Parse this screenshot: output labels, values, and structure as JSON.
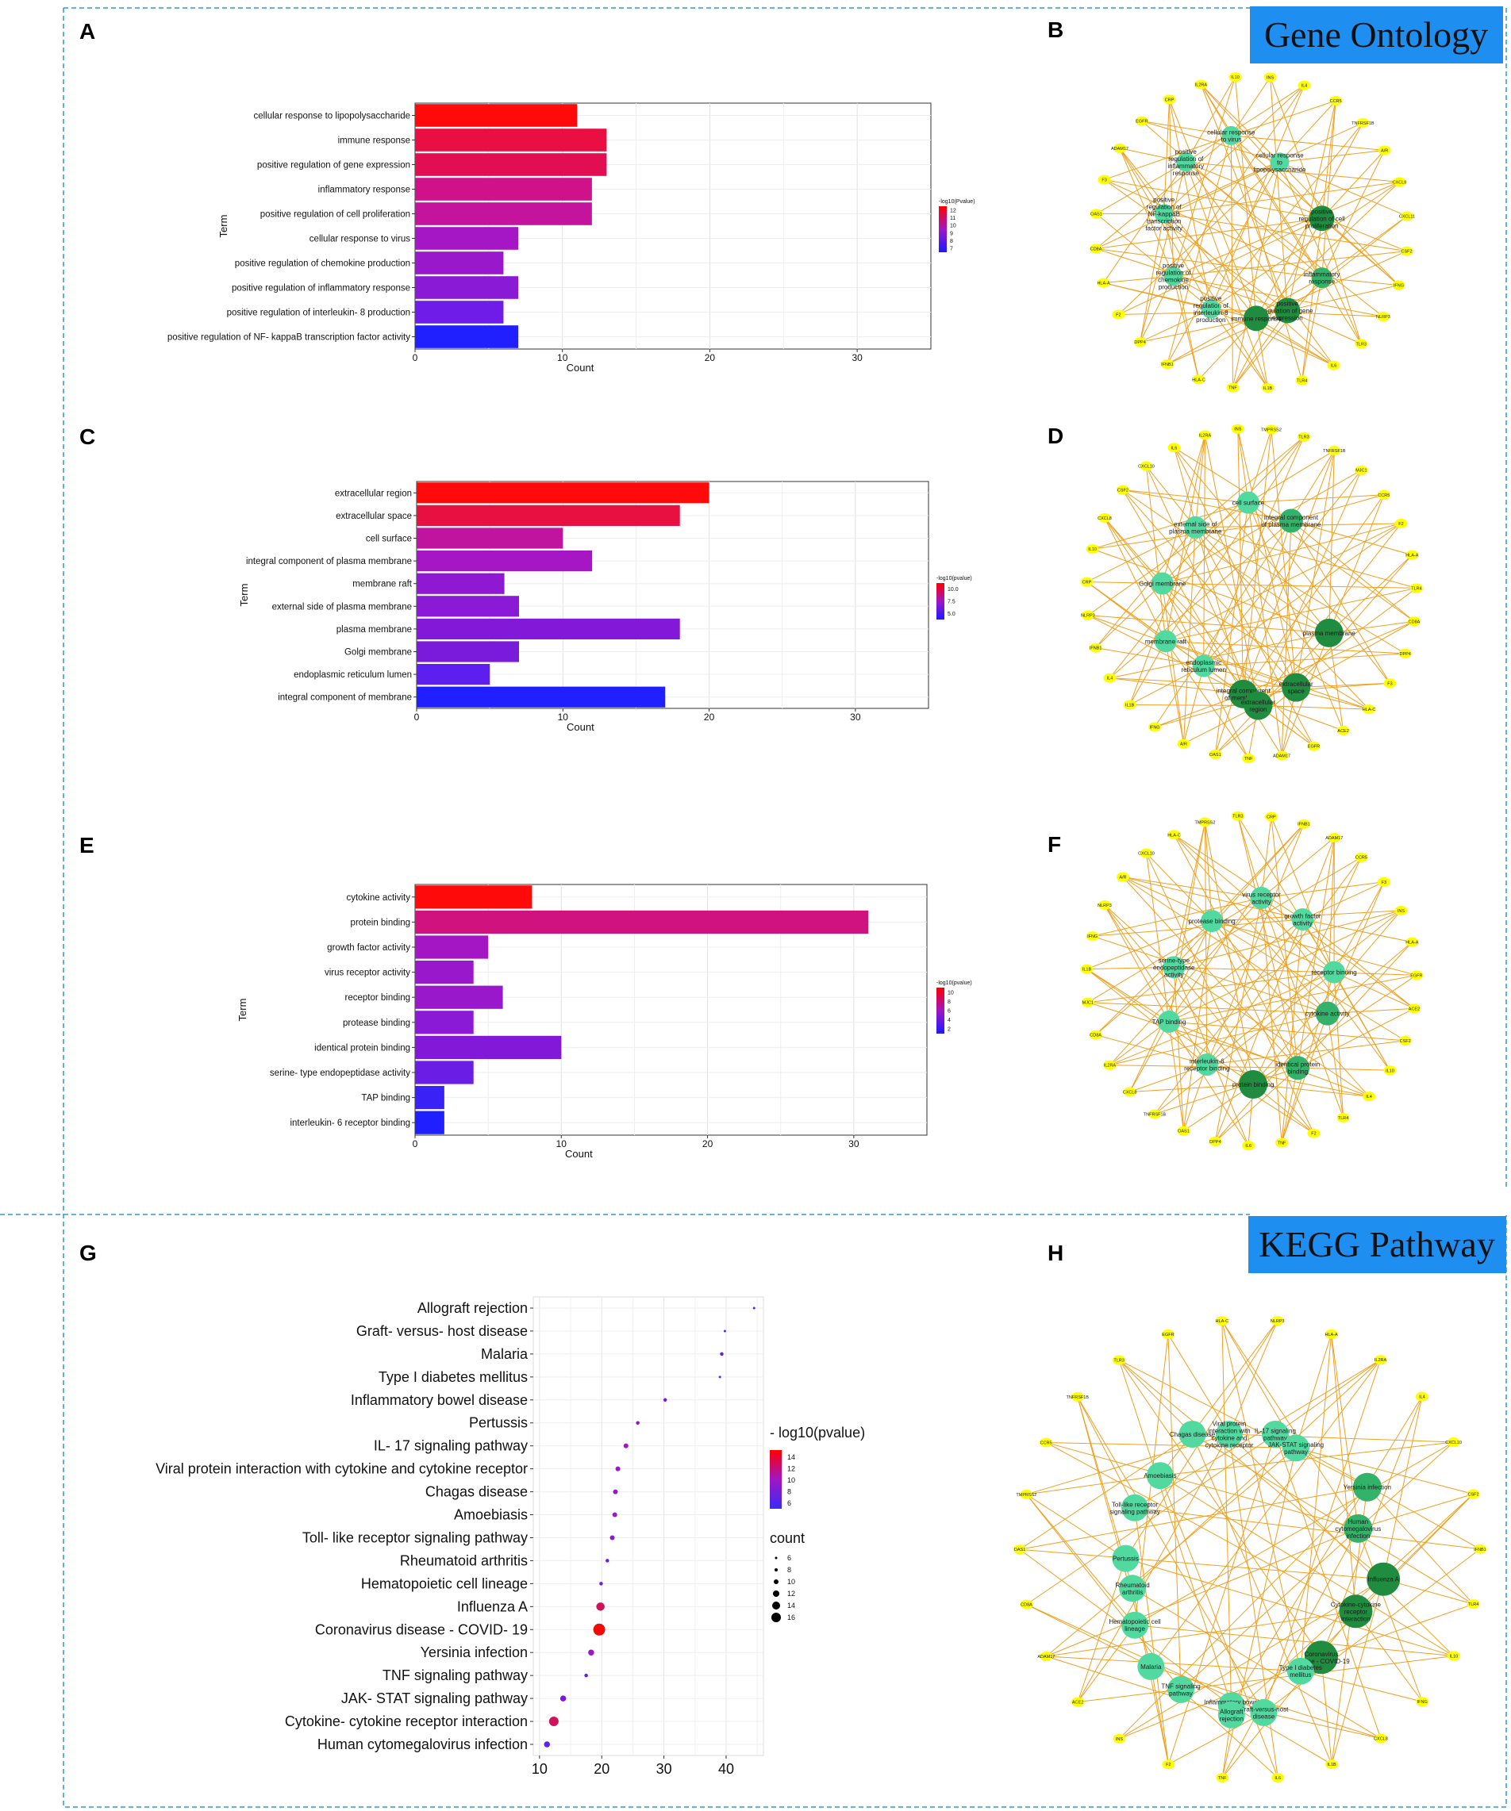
{
  "section_titles": {
    "go": "Gene Ontology",
    "kegg": "KEGG Pathway"
  },
  "panel_letters": [
    "A",
    "B",
    "C",
    "D",
    "E",
    "F",
    "G",
    "H"
  ],
  "colors": {
    "high": "#ff0000",
    "mid": "#9a0fcc",
    "low": "#1a1aff",
    "edge": "#f0a020",
    "gene_node": "#ffff00",
    "term_dark": "#1f8c3f",
    "term_light": "#45d98f",
    "title_box": "#1e8ff0",
    "divider": "#3399cc"
  },
  "chart_data": [
    {
      "id": "A",
      "type": "bar",
      "orientation": "horizontal",
      "ylabel": "Term",
      "xlabel": "Count",
      "xlim": [
        0,
        35
      ],
      "xticks": [
        0,
        10,
        20,
        30
      ],
      "legend_title": "-log10(Pvalue)",
      "legend_ticks": [
        "12",
        "11",
        "10",
        "9",
        "8",
        "7"
      ],
      "categories": [
        "cellular response to lipopolysaccharide",
        "immune response",
        "positive regulation of gene expression",
        "inflammatory response",
        "positive regulation of cell proliferation",
        "cellular response to virus",
        "positive regulation of chemokine production",
        "positive regulation of inflammatory response",
        "positive regulation of interleukin- 8 production",
        "positive regulation of NF- kappaB transcription factor activity"
      ],
      "values": [
        11,
        13,
        13,
        12,
        12,
        7,
        6,
        7,
        6,
        7
      ],
      "colors": [
        "#ff0a0a",
        "#ea0f42",
        "#e10f52",
        "#d0128a",
        "#c4139c",
        "#a516c4",
        "#9a18cc",
        "#8a1ad6",
        "#6f1ce8",
        "#2020ff"
      ]
    },
    {
      "id": "C",
      "type": "bar",
      "orientation": "horizontal",
      "ylabel": "Term",
      "xlabel": "Count",
      "xlim": [
        0,
        35
      ],
      "xticks": [
        0,
        10,
        20,
        30
      ],
      "legend_title": "-log10(pvalue)",
      "legend_ticks": [
        "10.0",
        "7.5",
        "5.0"
      ],
      "categories": [
        "extracellular region",
        "extracellular space",
        "cell surface",
        "integral component of plasma membrane",
        "membrane raft",
        "external side of plasma membrane",
        "plasma membrane",
        "Golgi membrane",
        "endoplasmic reticulum lumen",
        "integral component of membrane"
      ],
      "values": [
        20,
        18,
        10,
        12,
        6,
        7,
        18,
        7,
        5,
        17
      ],
      "colors": [
        "#ff0a0a",
        "#e81040",
        "#c0139e",
        "#a616c4",
        "#8f18d2",
        "#8a1ad6",
        "#8319d8",
        "#7a1bdc",
        "#5d1ff0",
        "#1f1fff"
      ]
    },
    {
      "id": "E",
      "type": "bar",
      "orientation": "horizontal",
      "ylabel": "Term",
      "xlabel": "Count",
      "xlim": [
        0,
        35
      ],
      "xticks": [
        0,
        10,
        20,
        30
      ],
      "legend_title": "-log10(pvalue)",
      "legend_ticks": [
        "10",
        "8",
        "6",
        "4",
        "2"
      ],
      "categories": [
        "cytokine activity",
        "protein binding",
        "growth factor activity",
        "virus receptor activity",
        "receptor binding",
        "protease binding",
        "identical protein binding",
        "serine- type endopeptidase activity",
        "TAP binding",
        "interleukin- 6 receptor binding"
      ],
      "values": [
        8,
        31,
        5,
        4,
        6,
        4,
        10,
        4,
        2,
        2
      ],
      "colors": [
        "#ff0a0a",
        "#d0127e",
        "#a416c4",
        "#9a18cc",
        "#9a18cc",
        "#8a1ad6",
        "#8319d8",
        "#6a1de4",
        "#3a22f6",
        "#1f1fff"
      ]
    },
    {
      "id": "G",
      "type": "scatter",
      "xlim": [
        9,
        46
      ],
      "xticks": [
        10,
        20,
        30,
        40
      ],
      "color_legend_title": "- log10(pvalue)",
      "color_legend_ticks": [
        "14",
        "12",
        "10",
        "8",
        "6"
      ],
      "size_legend_title": "count",
      "size_legend_ticks": [
        "6",
        "8",
        "10",
        "12",
        "14",
        "16"
      ],
      "categories": [
        "Allograft rejection",
        "Graft- versus- host disease",
        "Malaria",
        "Type I diabetes mellitus",
        "Inflammatory bowel disease",
        "Pertussis",
        "IL- 17 signaling pathway",
        "Viral protein interaction with cytokine and cytokine receptor",
        "Chagas disease",
        "Amoebiasis",
        "Toll- like receptor signaling pathway",
        "Rheumatoid arthritis",
        "Hematopoietic cell lineage",
        "Influenza A",
        "Coronavirus disease -  COVID- 19",
        "Yersinia infection",
        "TNF signaling pathway",
        "JAK- STAT signaling pathway",
        "Cytokine- cytokine receptor interaction",
        "Human cytomegalovirus infection"
      ],
      "x": [
        44.5,
        39.8,
        39.3,
        39.0,
        30.2,
        25.8,
        23.9,
        22.6,
        22.2,
        22.1,
        21.7,
        20.9,
        19.9,
        19.8,
        19.6,
        18.3,
        17.5,
        13.8,
        12.3,
        11.2
      ],
      "count": [
        5,
        5,
        7,
        5,
        7,
        7,
        8,
        8,
        8,
        8,
        8,
        7,
        7,
        11,
        14,
        9,
        7,
        9,
        12,
        9
      ],
      "colors": [
        "#4a2af0",
        "#4a2af0",
        "#6020e8",
        "#4a2af0",
        "#7a1ad8",
        "#9018c8",
        "#a016c0",
        "#9a18c8",
        "#9a18c8",
        "#9a18c8",
        "#9018cc",
        "#6a1ee2",
        "#6a1ee2",
        "#d0125a",
        "#f00a0a",
        "#a016c0",
        "#5a22ea",
        "#7a1ad8",
        "#d0125a",
        "#5a22ea"
      ]
    }
  ],
  "networks": {
    "B": {
      "terms": [
        {
          "label": "cellular response to virus",
          "shade": "light"
        },
        {
          "label": "positive regulation of inflammatory response",
          "shade": "light"
        },
        {
          "label": "cellular response to lipopolysaccharide",
          "shade": "light"
        },
        {
          "label": "positive regulation of NF-kappaB transcription factor activity",
          "shade": "light"
        },
        {
          "label": "positive regulation of cell proliferation",
          "shade": "dark"
        },
        {
          "label": "positive regulation of chemokine production",
          "shade": "light"
        },
        {
          "label": "inflammatory response",
          "shade": "mid"
        },
        {
          "label": "positive regulation of interleukin-8 production",
          "shade": "light"
        },
        {
          "label": "positive regulation of gene expression",
          "shade": "dark"
        },
        {
          "label": "immune response",
          "shade": "dark"
        }
      ],
      "genes": [
        "INS",
        "IL4",
        "CCR5",
        "TNFRSF1B",
        "A/R",
        "CXCL8",
        "CXCL11",
        "CSF2",
        "IFNG",
        "NLRP3",
        "TLR3",
        "IL6",
        "TLR4",
        "IL1B",
        "TNF",
        "HLA-C",
        "IFNB1",
        "DPP4",
        "F2",
        "HLA-A",
        "CD8A",
        "OAS1",
        "F3",
        "ADAM17",
        "EGFR",
        "CRP",
        "IL2RA",
        "IL10"
      ]
    },
    "D": {
      "terms": [
        {
          "label": "cell surface",
          "shade": "light"
        },
        {
          "label": "external side of plasma membrane",
          "shade": "light"
        },
        {
          "label": "integral component of plasma membrane",
          "shade": "mid"
        },
        {
          "label": "Golgi membrane",
          "shade": "light"
        },
        {
          "label": "integral component of membrane",
          "shade": "dark"
        },
        {
          "label": "membrane raft",
          "shade": "light"
        },
        {
          "label": "plasma membrane",
          "shade": "dark"
        },
        {
          "label": "endoplasmic reticulum lumen",
          "shade": "light"
        },
        {
          "label": "extracellular space",
          "shade": "dark"
        },
        {
          "label": "extracellular region",
          "shade": "dark"
        }
      ],
      "genes": [
        "TMPRSS2",
        "TLR3",
        "TNFRSF1B",
        "MJC1",
        "CCR5",
        "F2",
        "HLA-A",
        "TLR4",
        "CD8A",
        "DPP4",
        "F3",
        "HLA-C",
        "ACE2",
        "EGFR",
        "ADAM17",
        "TNF",
        "OAS1",
        "A/R",
        "IFNG",
        "IL1B",
        "IL4",
        "IFNB1",
        "NLRP3",
        "CRP",
        "IL10",
        "CXCL8",
        "CSF2",
        "CXCL10",
        "IL6",
        "IL2RA",
        "INS"
      ]
    },
    "F": {
      "terms": [
        {
          "label": "virus receptor activity",
          "shade": "light"
        },
        {
          "label": "protease binding",
          "shade": "light"
        },
        {
          "label": "growth factor activity",
          "shade": "light"
        },
        {
          "label": "serine-type endopeptidase activity",
          "shade": "light"
        },
        {
          "label": "receptor binding",
          "shade": "light"
        },
        {
          "label": "TAP binding",
          "shade": "light"
        },
        {
          "label": "cytokine activity",
          "shade": "mid"
        },
        {
          "label": "interleukin-6 receptor binding",
          "shade": "light"
        },
        {
          "label": "identical protein binding",
          "shade": "mid"
        },
        {
          "label": "protein binding",
          "shade": "dark"
        }
      ],
      "genes": [
        "CRP",
        "IFNB1",
        "ADAM17",
        "CCR5",
        "F3",
        "INS",
        "HLA-A",
        "EGFR",
        "ACE2",
        "CSF2",
        "IL10",
        "IL4",
        "TLR4",
        "F2",
        "TNF",
        "IL6",
        "DPP4",
        "OAS1",
        "TNFRSF1B",
        "CXCL8",
        "IL2RA",
        "CD8A",
        "MJC1",
        "IL1B",
        "IFNG",
        "NLRP3",
        "A/R",
        "CXCL10",
        "HLA-C",
        "TMPRSS2",
        "TLR3"
      ]
    },
    "H": {
      "terms": [
        {
          "label": "Viral protein interaction with cytokine and cytokine receptor",
          "shade": "light"
        },
        {
          "label": "Chagas disease",
          "shade": "light"
        },
        {
          "label": "IL-17 signaling pathway",
          "shade": "light"
        },
        {
          "label": "JAK-STAT signaling pathway",
          "shade": "light"
        },
        {
          "label": "Amoebiasis",
          "shade": "light"
        },
        {
          "label": "Yersinia infection",
          "shade": "mid"
        },
        {
          "label": "Toll-like receptor signaling pathway",
          "shade": "light"
        },
        {
          "label": "Human cytomegalovirus infection",
          "shade": "mid"
        },
        {
          "label": "Pertussis",
          "shade": "light"
        },
        {
          "label": "Influenza A",
          "shade": "dark"
        },
        {
          "label": "Rheumatoid arthritis",
          "shade": "light"
        },
        {
          "label": "Cytokine-cytokine receptor interaction",
          "shade": "dark"
        },
        {
          "label": "Hematopoietic cell lineage",
          "shade": "light"
        },
        {
          "label": "Coronavirus disease - COVID-19",
          "shade": "dark"
        },
        {
          "label": "Malaria",
          "shade": "light"
        },
        {
          "label": "Type I diabetes mellitus",
          "shade": "light"
        },
        {
          "label": "TNF signaling pathway",
          "shade": "light"
        },
        {
          "label": "Inflammatory bowel disease",
          "shade": "light"
        },
        {
          "label": "Graft-versus-host disease",
          "shade": "light"
        },
        {
          "label": "Allograft rejection",
          "shade": "light"
        }
      ],
      "genes": [
        "NLRP3",
        "HLA-A",
        "IL2RA",
        "IL4",
        "CXCL10",
        "CSF2",
        "IFNB1",
        "TLR4",
        "IL10",
        "IFNG",
        "CXCL8",
        "IL1B",
        "IL6",
        "TNF",
        "F2",
        "INS",
        "ACE2",
        "ADAM17",
        "CD8A",
        "OAS1",
        "TMPRSS2",
        "CCR5",
        "TNFRSF1B",
        "TLR3",
        "EGFR",
        "HLA-C"
      ]
    }
  }
}
